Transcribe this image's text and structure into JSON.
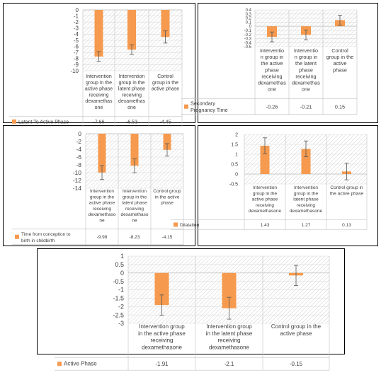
{
  "colors": {
    "bar": "#F59A4E",
    "grid": "#D9D9D9",
    "hatch": "#D0D0D0",
    "axis": "#BFBFBF",
    "error": "#555555"
  },
  "chart_data": [
    {
      "type": "bar",
      "title": "",
      "ylim": [
        -10,
        0
      ],
      "yticks": [
        "0",
        "-1",
        "-2",
        "-3",
        "-4",
        "-5",
        "-6",
        "-7",
        "-8",
        "-9",
        "-10"
      ],
      "categories": [
        [
          "Intervention",
          "group in the",
          "active phase",
          "receiving",
          "dexamethas",
          "one"
        ],
        [
          "Intervention",
          "group in the",
          "latent phase",
          "receiving",
          "dexamethas",
          "one"
        ],
        [
          "Control",
          "group in the",
          "active phase"
        ]
      ],
      "series": [
        {
          "name": "Latent To Active Phase",
          "values": [
            -7.66,
            -6.53,
            -4.45
          ],
          "labels": [
            "-7.66",
            "-6.53",
            "-4.45"
          ],
          "errors": [
            0.8,
            0.8,
            1.0
          ]
        }
      ]
    },
    {
      "type": "bar",
      "title": "",
      "ylim": [
        -0.5,
        0.4
      ],
      "yticks": [
        "0.4",
        "0.3",
        "0.2",
        "0.1",
        "0",
        "-0.1",
        "-0.2",
        "-0.3",
        "-0.4",
        "-0.5"
      ],
      "categories": [
        [
          "Interventio",
          "n group in",
          "the active",
          "phase",
          "receiving",
          "dexamethas",
          "one"
        ],
        [
          "Interventio",
          "n group in",
          "the latent",
          "phase",
          "receiving",
          "dexamethas",
          "one"
        ],
        [
          "Control",
          "group in the",
          "active",
          "phase"
        ]
      ],
      "series": [
        {
          "name_lines": [
            "Secondary",
            "Pregnancy Time"
          ],
          "values": [
            -0.26,
            -0.21,
            0.15
          ],
          "labels": [
            "-0.26",
            "-0.21",
            "0.15"
          ],
          "errors": [
            0.12,
            0.12,
            0.12
          ]
        }
      ]
    },
    {
      "type": "bar",
      "title": "",
      "ylim": [
        -14,
        0
      ],
      "yticks": [
        "0",
        "-2",
        "-4",
        "-6",
        "-8",
        "-10",
        "-12",
        "-14"
      ],
      "categories": [
        [
          "Intervention",
          "group in the",
          "active phase",
          "receiving",
          "dexamethaso",
          "ne"
        ],
        [
          "Intervention",
          "group in the",
          "latent phase",
          "receiving",
          "dexamethaso",
          "ne"
        ],
        [
          "Control group",
          "in the active",
          "phase"
        ]
      ],
      "series": [
        {
          "name_lines": [
            "Time from conception to",
            "birth in childbirth"
          ],
          "values": [
            -9.98,
            -8.23,
            -4.15
          ],
          "labels": [
            "-9.98",
            "-8.23",
            "-4.15"
          ],
          "errors": [
            1.8,
            1.8,
            1.6
          ]
        }
      ]
    },
    {
      "type": "bar",
      "title": "",
      "ylim": [
        -0.5,
        2
      ],
      "yticks": [
        "2",
        "1.5",
        "1",
        "0.5",
        "0",
        "-0.5"
      ],
      "categories": [
        [
          "Intervention",
          "group in the",
          "active phase",
          "receiving",
          "dexamethasone"
        ],
        [
          "Intervention",
          "group in the",
          "latent phase",
          "receiving",
          "dexamethasone"
        ],
        [
          "Control group in",
          "the active phase"
        ]
      ],
      "series": [
        {
          "name": "Dilatation",
          "values": [
            1.43,
            1.27,
            0.13
          ],
          "labels": [
            "1.43",
            "1.27",
            "0.13"
          ],
          "errors": [
            0.4,
            0.4,
            0.42
          ]
        }
      ]
    },
    {
      "type": "bar",
      "title": "",
      "ylim": [
        -3,
        1
      ],
      "yticks": [
        "1",
        "0.5",
        "0",
        "-0.5",
        "-1",
        "-1.5",
        "-2",
        "-2.5",
        "-3"
      ],
      "categories": [
        [
          "Intervention group",
          "in the active phase",
          "receiving",
          "dexamethasone"
        ],
        [
          "Intervention group",
          "in the latent phase",
          "receiving",
          "dexamethasone"
        ],
        [
          "Control group in the",
          "active phase"
        ]
      ],
      "series": [
        {
          "name": "Active Phase",
          "values": [
            -1.91,
            -2.1,
            -0.15
          ],
          "labels": [
            "-1.91",
            "-2.1",
            "-0.15"
          ],
          "errors": [
            0.6,
            0.65,
            0.6
          ]
        }
      ]
    }
  ]
}
